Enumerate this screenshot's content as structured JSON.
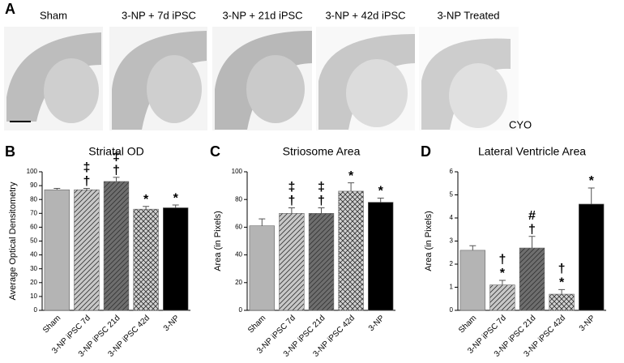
{
  "panel_a": {
    "letter": "A",
    "labels": [
      "Sham",
      "3-NP + 7d iPSC",
      "3-NP + 21d iPSC",
      "3-NP + 42d iPSC",
      "3-NP Treated"
    ],
    "note": "CYO"
  },
  "chart_data": [
    {
      "type": "bar",
      "letter": "B",
      "title": "Striatal OD",
      "ylabel": "Average Optical Densitometry",
      "categories": [
        "Sham",
        "3-NP iPSC 7d",
        "3-NP iPSC 21d",
        "3-NP iPSC 42d",
        "3-NP"
      ],
      "values": [
        87,
        87,
        93,
        73,
        74
      ],
      "errors": [
        1,
        1,
        3,
        2,
        2
      ],
      "annotations": [
        [],
        [
          "‡",
          "†"
        ],
        [
          "‡",
          "†"
        ],
        [
          "*"
        ],
        [
          "*"
        ]
      ],
      "colors": [
        "#b4b4b4",
        "#c8c8c8",
        "#6e6e6e",
        "#d2d2d2",
        "#000000"
      ],
      "patterns": [
        "solid",
        "diagonal",
        "diagonal",
        "crosshatch",
        "solid"
      ],
      "ylim": [
        0,
        100
      ],
      "yticks": [
        0,
        10,
        20,
        30,
        40,
        50,
        60,
        70,
        80,
        90,
        100
      ]
    },
    {
      "type": "bar",
      "letter": "C",
      "title": "Striosome Area",
      "ylabel": "Area (in Pixels)",
      "categories": [
        "Sham",
        "3-NP iPSC 7d",
        "3-NP iPSC 21d",
        "3-NP iPSC 42d",
        "3-NP"
      ],
      "values": [
        61,
        70,
        70,
        86,
        78
      ],
      "errors": [
        5,
        4,
        4,
        6,
        3
      ],
      "annotations": [
        [],
        [
          "‡",
          "†"
        ],
        [
          "‡",
          "†"
        ],
        [
          "*"
        ],
        [
          "*"
        ]
      ],
      "colors": [
        "#b4b4b4",
        "#c8c8c8",
        "#6e6e6e",
        "#d2d2d2",
        "#000000"
      ],
      "patterns": [
        "solid",
        "diagonal",
        "diagonal",
        "crosshatch",
        "solid"
      ],
      "ylim": [
        0,
        100
      ],
      "yticks": [
        0,
        20,
        40,
        60,
        80,
        100
      ]
    },
    {
      "type": "bar",
      "letter": "D",
      "title": "Lateral Ventricle Area",
      "ylabel": "Area (in Pixels)",
      "categories": [
        "Sham",
        "3-NP iPSC 7d",
        "3-NP iPSC 21d",
        "3-NP iPSC 42d",
        "3-NP"
      ],
      "values": [
        2.6,
        1.1,
        2.7,
        0.7,
        4.6
      ],
      "errors": [
        0.2,
        0.2,
        0.5,
        0.2,
        0.7
      ],
      "annotations": [
        [],
        [
          "†",
          "*"
        ],
        [
          "#",
          "†"
        ],
        [
          "†",
          "*"
        ],
        [
          "*"
        ]
      ],
      "colors": [
        "#b4b4b4",
        "#c8c8c8",
        "#6e6e6e",
        "#d2d2d2",
        "#000000"
      ],
      "patterns": [
        "solid",
        "diagonal",
        "diagonal",
        "crosshatch",
        "solid"
      ],
      "ylim": [
        0,
        6
      ],
      "yticks": [
        0,
        1,
        2,
        3,
        4,
        5,
        6
      ]
    }
  ]
}
